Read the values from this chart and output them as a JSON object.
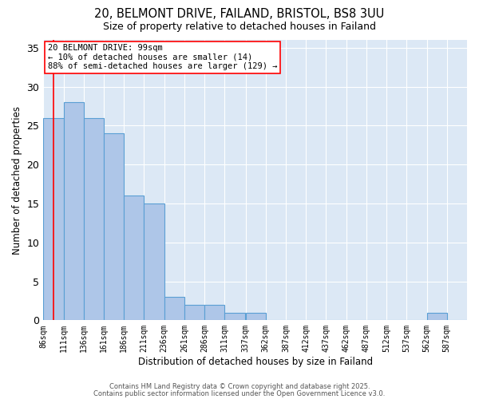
{
  "title_line1": "20, BELMONT DRIVE, FAILAND, BRISTOL, BS8 3UU",
  "title_line2": "Size of property relative to detached houses in Failand",
  "xlabel": "Distribution of detached houses by size in Failand",
  "ylabel": "Number of detached properties",
  "bin_labels": [
    "86sqm",
    "111sqm",
    "136sqm",
    "161sqm",
    "186sqm",
    "211sqm",
    "236sqm",
    "261sqm",
    "286sqm",
    "311sqm",
    "337sqm",
    "362sqm",
    "387sqm",
    "412sqm",
    "437sqm",
    "462sqm",
    "487sqm",
    "512sqm",
    "537sqm",
    "562sqm",
    "587sqm"
  ],
  "bin_edges": [
    86,
    111,
    136,
    161,
    186,
    211,
    236,
    261,
    286,
    311,
    337,
    362,
    387,
    412,
    437,
    462,
    487,
    512,
    537,
    562,
    587,
    612
  ],
  "counts": [
    26,
    28,
    26,
    24,
    16,
    15,
    3,
    2,
    2,
    1,
    1,
    0,
    0,
    0,
    0,
    0,
    0,
    0,
    0,
    1,
    0
  ],
  "bar_facecolor": "#aec6e8",
  "bar_edgecolor": "#5a9fd4",
  "bg_color": "#dce8f5",
  "grid_color": "#ffffff",
  "annotation_text": "20 BELMONT DRIVE: 99sqm\n← 10% of detached houses are smaller (14)\n88% of semi-detached houses are larger (129) →",
  "annotation_box_color": "white",
  "annotation_box_edgecolor": "red",
  "property_line_x": 99,
  "ylim": [
    0,
    36
  ],
  "yticks": [
    0,
    5,
    10,
    15,
    20,
    25,
    30,
    35
  ],
  "footer_line1": "Contains HM Land Registry data © Crown copyright and database right 2025.",
  "footer_line2": "Contains public sector information licensed under the Open Government Licence v3.0."
}
